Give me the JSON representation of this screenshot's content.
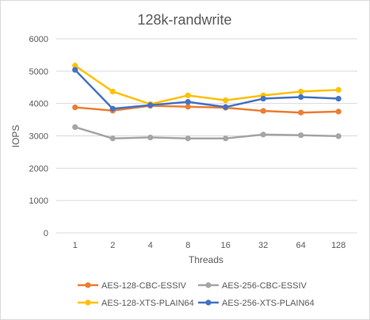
{
  "chart_data": {
    "type": "line",
    "title": "128k-randwrite",
    "xlabel": "Threads",
    "ylabel": "IOPS",
    "categories": [
      "1",
      "2",
      "4",
      "8",
      "16",
      "32",
      "64",
      "128"
    ],
    "ylim": [
      0,
      6000
    ],
    "yticks": [
      0,
      1000,
      2000,
      3000,
      4000,
      5000,
      6000
    ],
    "grid": true,
    "legend_position": "bottom",
    "series": [
      {
        "name": "AES-128-CBC-ESSIV",
        "color": "#ed7d31",
        "values": [
          3880,
          3780,
          3930,
          3900,
          3870,
          3770,
          3720,
          3750
        ]
      },
      {
        "name": "AES-256-CBC-ESSIV",
        "color": "#a5a5a5",
        "values": [
          3270,
          2920,
          2950,
          2920,
          2920,
          3040,
          3020,
          2990
        ]
      },
      {
        "name": "AES-128-XTS-PLAIN64",
        "color": "#ffc000",
        "values": [
          5170,
          4370,
          3980,
          4250,
          4100,
          4250,
          4370,
          4420
        ]
      },
      {
        "name": "AES-256-XTS-PLAIN64",
        "color": "#4472c4",
        "values": [
          5040,
          3840,
          3950,
          4050,
          3890,
          4150,
          4200,
          4150
        ]
      }
    ]
  }
}
